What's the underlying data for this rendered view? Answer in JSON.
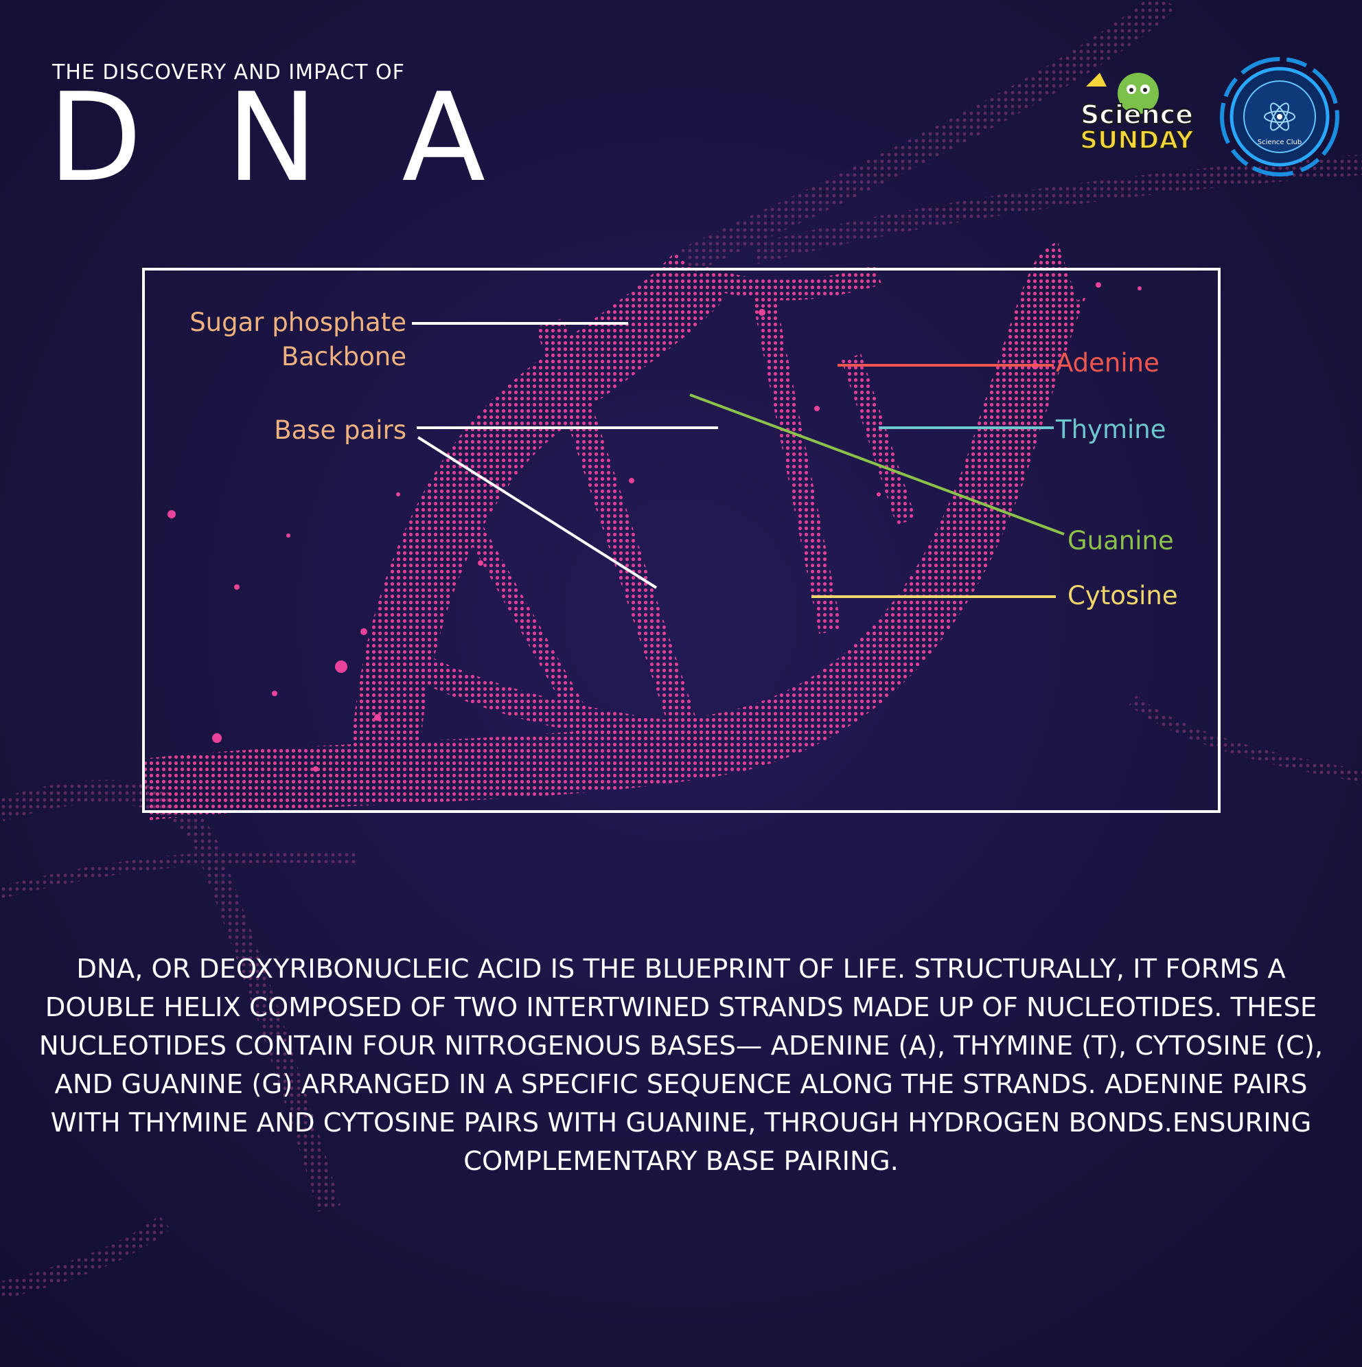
{
  "header": {
    "subtitle": "THE DISCOVERY AND IMPACT OF",
    "title": "D N A"
  },
  "logos": {
    "science_sunday_line1": "Science",
    "science_sunday_line2": "SUNDAY",
    "club_badge_text": "Science Club"
  },
  "diagram": {
    "labels_left": {
      "backbone_line1": "Sugar phosphate",
      "backbone_line2": "Backbone",
      "base_pairs": "Base pairs"
    },
    "labels_right": [
      {
        "key": "adenine",
        "text": "Adenine",
        "color": "#f0564f"
      },
      {
        "key": "thymine",
        "text": "Thymine",
        "color": "#6dc7cf"
      },
      {
        "key": "guanine",
        "text": "Guanine",
        "color": "#8cc14a"
      },
      {
        "key": "cytosine",
        "text": "Cytosine",
        "color": "#f2d86c"
      }
    ],
    "colors": {
      "helix": "#e8429a",
      "background": "#17123a",
      "frame": "#ffffff",
      "left_label": "#f0b27f"
    }
  },
  "description": "DNA, or Deoxyribonucleic acid  is the blueprint of life. Structurally, it forms a double helix composed of two intertwined strands made up of nucleotides. These nucleotides contain four nitrogenous bases— adenine (A), thymine (T), cytosine (C), and guanine (G) arranged in a specific sequence along the strands. Adenine pairs with thymine and cytosine pairs with guanine, through hydrogen bonds.Ensuring complementary base pairing."
}
